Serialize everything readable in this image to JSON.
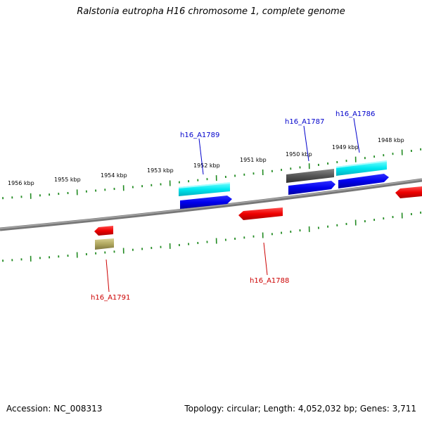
{
  "title": "Ralstonia eutropha H16 chromosome 1, complete genome",
  "footer": {
    "accession": "Accession: NC_008313",
    "stats": "Topology: circular; Length: 4,052,032 bp; Genes: 3,711"
  },
  "scale_labels": [
    "1956 kbp",
    "1955 kbp",
    "1954 kbp",
    "1953 kbp",
    "1952 kbp",
    "1951 kbp",
    "1950 kbp",
    "1949 kbp",
    "1948 kbp"
  ],
  "gene_labels": [
    {
      "text": "h16_A1789",
      "color": "#0000cc"
    },
    {
      "text": "h16_A1787",
      "color": "#0000cc"
    },
    {
      "text": "h16_A1786",
      "color": "#0000cc"
    },
    {
      "text": "h16_A1788",
      "color": "#cc0000"
    },
    {
      "text": "h16_A1791",
      "color": "#cc0000"
    }
  ],
  "colors": {
    "backbone": "#808080",
    "ticks": "#228b22",
    "gene_red": "#ee0000",
    "gene_blue": "#0000ee",
    "gene_cyan": "#00e0e8",
    "gene_gray": "#555555",
    "gene_khaki": "#b0a860"
  }
}
